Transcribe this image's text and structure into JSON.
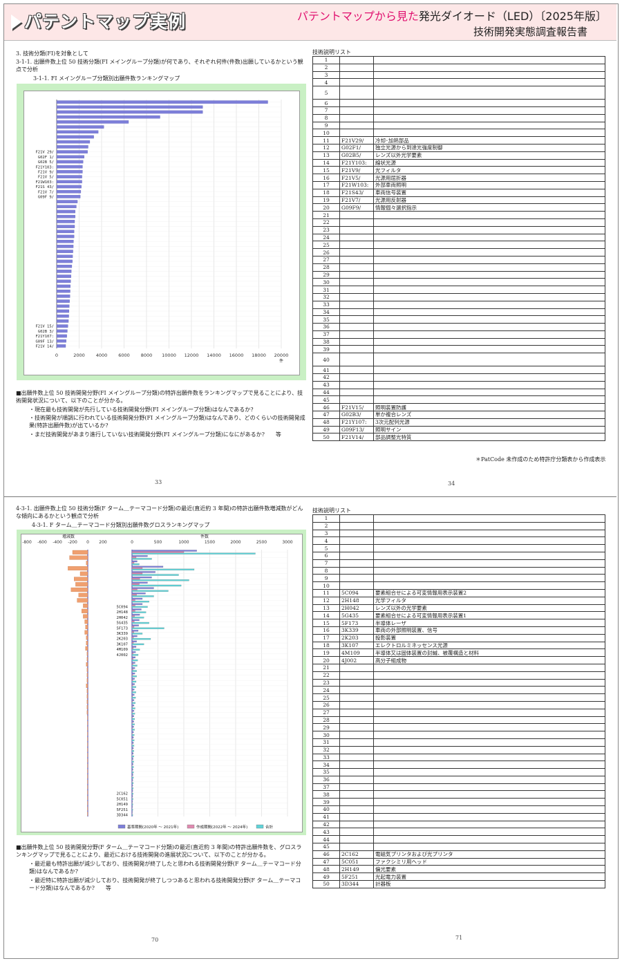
{
  "header": {
    "title": "パテントマップ実例",
    "subtitle_red": "パテントマップから見た",
    "subtitle_black": "発光ダイオード（LED）〔2025年版〕",
    "subtitle2": "技術開発実態調査報告書"
  },
  "section1": {
    "heading": "3. 技術分類(FI)を対象として",
    "sub": "3-1-1. 出願件数上位 50 技術分類(FI メイングループ分類)が何であり、それぞれ何件(件数)出願しているかという観点で分析",
    "chart_title": "3-1-1. FI メイングループ分類別出願件数ランキングマップ",
    "para_lead": "■出願件数上位 50 技術開発分野(FI メイングループ分類)の特許出願件数をランキングマップで見ることにより、技術開発状況について、以下のことが分かる。",
    "bullets": [
      "・現在最も技術開発が先行している技術開発分野(FI メイングループ分類)はなんであるか?",
      "・技術開発が順調に行われている技術開発分野(FI メイングループ分類)はなんであり、どのくらいの技術開発成果(特許出願件数)が出ているか?",
      "・まだ技術開発があまり進行していない技術開発分野(FI メイングループ分類)になにがあるか?　　等"
    ],
    "page_left": "33",
    "page_right": "34",
    "list_title": "技術説明リスト",
    "footnote": "＊PatCode 未作成のため特許庁分類表から作成表示",
    "list": [
      {
        "n": "1",
        "c": "",
        "d": ""
      },
      {
        "n": "2",
        "c": "",
        "d": ""
      },
      {
        "n": "3",
        "c": "",
        "d": ""
      },
      {
        "n": "4",
        "c": "",
        "d": ""
      },
      {
        "n": "5",
        "c": "",
        "d": ""
      },
      {
        "n": "6",
        "c": "",
        "d": ""
      },
      {
        "n": "7",
        "c": "",
        "d": ""
      },
      {
        "n": "8",
        "c": "",
        "d": ""
      },
      {
        "n": "9",
        "c": "",
        "d": ""
      },
      {
        "n": "10",
        "c": "",
        "d": ""
      },
      {
        "n": "11",
        "c": "F21V29/",
        "d": "冷却･加熱部品"
      },
      {
        "n": "12",
        "c": "G02F1/",
        "d": "独立光源から到達光強度制御"
      },
      {
        "n": "13",
        "c": "G02B5/",
        "d": "レンズ以外光学要素"
      },
      {
        "n": "14",
        "c": "F21Y103:",
        "d": "線状光源"
      },
      {
        "n": "15",
        "c": "F21V9/",
        "d": "光フィルタ"
      },
      {
        "n": "16",
        "c": "F21V5/",
        "d": "光源用屈折器"
      },
      {
        "n": "17",
        "c": "F21W103:",
        "d": "外部車両照明"
      },
      {
        "n": "18",
        "c": "F21S43/",
        "d": "車両信号装置"
      },
      {
        "n": "19",
        "c": "F21V7/",
        "d": "光源用反射器"
      },
      {
        "n": "20",
        "c": "G09F9/",
        "d": "情報個々選択指示"
      },
      {
        "n": "21",
        "c": "",
        "d": ""
      },
      {
        "n": "22",
        "c": "",
        "d": ""
      },
      {
        "n": "23",
        "c": "",
        "d": ""
      },
      {
        "n": "24",
        "c": "",
        "d": ""
      },
      {
        "n": "25",
        "c": "",
        "d": ""
      },
      {
        "n": "26",
        "c": "",
        "d": ""
      },
      {
        "n": "27",
        "c": "",
        "d": ""
      },
      {
        "n": "28",
        "c": "",
        "d": ""
      },
      {
        "n": "29",
        "c": "",
        "d": ""
      },
      {
        "n": "30",
        "c": "",
        "d": ""
      },
      {
        "n": "31",
        "c": "",
        "d": ""
      },
      {
        "n": "32",
        "c": "",
        "d": ""
      },
      {
        "n": "33",
        "c": "",
        "d": ""
      },
      {
        "n": "34",
        "c": "",
        "d": ""
      },
      {
        "n": "35",
        "c": "",
        "d": ""
      },
      {
        "n": "36",
        "c": "",
        "d": ""
      },
      {
        "n": "37",
        "c": "",
        "d": ""
      },
      {
        "n": "38",
        "c": "",
        "d": ""
      },
      {
        "n": "39",
        "c": "",
        "d": ""
      },
      {
        "n": "40",
        "c": "",
        "d": ""
      },
      {
        "n": "41",
        "c": "",
        "d": ""
      },
      {
        "n": "42",
        "c": "",
        "d": ""
      },
      {
        "n": "43",
        "c": "",
        "d": ""
      },
      {
        "n": "44",
        "c": "",
        "d": ""
      },
      {
        "n": "45",
        "c": "",
        "d": ""
      },
      {
        "n": "46",
        "c": "F21V15/",
        "d": "照明装置防護"
      },
      {
        "n": "47",
        "c": "G02B3/",
        "d": "単か複合レンズ"
      },
      {
        "n": "48",
        "c": "F21Y107:",
        "d": "3次元配列光源"
      },
      {
        "n": "49",
        "c": "G09F13/",
        "d": "照明サイン"
      },
      {
        "n": "50",
        "c": "F21V14/",
        "d": "部品調整光特質"
      }
    ]
  },
  "section2": {
    "sub": "4-3-1. 出願件数上位 50 技術分類(F ターム＿テーマコード分類)の最近(直近約 3 年間)の特許出願件数増減数がどんな傾向にあるかという観点で分析",
    "chart_title": "4-3-1. F ターム＿テーマコード分類別出願件数グロスランキングマップ",
    "para_lead": "■出願件数上位 50 技術開発分野(F ターム＿テーマコード分類)の最近(直近約 3 年間)の特許出願件数を、グロスランキングマップで見ることにより、最近における技術開発の進展状況について、以下のことが分かる。",
    "bullets": [
      "・最近最も特許出願が減少しており、技術開発が終了したと思われる技術開発分野(F ターム＿テーマコード分類)はなんであるか?",
      "・最近特に特許出願が減少しており、技術開発が終了しつつあると思われる技術開発分野(F ターム＿テーマコード分類)はなんであるか?　　等"
    ],
    "page_left": "70",
    "page_right": "71",
    "list_title": "技術説明リスト",
    "list": [
      {
        "n": "1",
        "c": "",
        "d": ""
      },
      {
        "n": "2",
        "c": "",
        "d": ""
      },
      {
        "n": "3",
        "c": "",
        "d": ""
      },
      {
        "n": "4",
        "c": "",
        "d": ""
      },
      {
        "n": "5",
        "c": "",
        "d": ""
      },
      {
        "n": "6",
        "c": "",
        "d": ""
      },
      {
        "n": "7",
        "c": "",
        "d": ""
      },
      {
        "n": "8",
        "c": "",
        "d": ""
      },
      {
        "n": "9",
        "c": "",
        "d": ""
      },
      {
        "n": "10",
        "c": "",
        "d": ""
      },
      {
        "n": "11",
        "c": "5C094",
        "d": "要素組合せによる可変情報用表示装置2"
      },
      {
        "n": "12",
        "c": "2H148",
        "d": "光学フィルタ"
      },
      {
        "n": "13",
        "c": "2H042",
        "d": "レンズ以外の光学要素"
      },
      {
        "n": "14",
        "c": "5G435",
        "d": "要素組合せによる可変情報用表示装置1"
      },
      {
        "n": "15",
        "c": "5F173",
        "d": "半導体レーザ"
      },
      {
        "n": "16",
        "c": "3K339",
        "d": "車両の外部照明装置、信号"
      },
      {
        "n": "17",
        "c": "2K203",
        "d": "投影装置"
      },
      {
        "n": "18",
        "c": "3K107",
        "d": "エレクトロルミネッセンス光源"
      },
      {
        "n": "19",
        "c": "4M109",
        "d": "半導体又は固体装置の封緘、被覆構造と材料"
      },
      {
        "n": "20",
        "c": "4J002",
        "d": "高分子組成物"
      },
      {
        "n": "21",
        "c": "",
        "d": ""
      },
      {
        "n": "22",
        "c": "",
        "d": ""
      },
      {
        "n": "23",
        "c": "",
        "d": ""
      },
      {
        "n": "24",
        "c": "",
        "d": ""
      },
      {
        "n": "25",
        "c": "",
        "d": ""
      },
      {
        "n": "26",
        "c": "",
        "d": ""
      },
      {
        "n": "27",
        "c": "",
        "d": ""
      },
      {
        "n": "28",
        "c": "",
        "d": ""
      },
      {
        "n": "29",
        "c": "",
        "d": ""
      },
      {
        "n": "30",
        "c": "",
        "d": ""
      },
      {
        "n": "31",
        "c": "",
        "d": ""
      },
      {
        "n": "32",
        "c": "",
        "d": ""
      },
      {
        "n": "33",
        "c": "",
        "d": ""
      },
      {
        "n": "34",
        "c": "",
        "d": ""
      },
      {
        "n": "35",
        "c": "",
        "d": ""
      },
      {
        "n": "36",
        "c": "",
        "d": ""
      },
      {
        "n": "37",
        "c": "",
        "d": ""
      },
      {
        "n": "38",
        "c": "",
        "d": ""
      },
      {
        "n": "39",
        "c": "",
        "d": ""
      },
      {
        "n": "40",
        "c": "",
        "d": ""
      },
      {
        "n": "41",
        "c": "",
        "d": ""
      },
      {
        "n": "42",
        "c": "",
        "d": ""
      },
      {
        "n": "43",
        "c": "",
        "d": ""
      },
      {
        "n": "44",
        "c": "",
        "d": ""
      },
      {
        "n": "45",
        "c": "",
        "d": ""
      },
      {
        "n": "46",
        "c": "2C162",
        "d": "電磁気プリンタおよび光プリンタ"
      },
      {
        "n": "47",
        "c": "5C051",
        "d": "ファクシミリ用ヘッド"
      },
      {
        "n": "48",
        "c": "2H149",
        "d": "偏光要素"
      },
      {
        "n": "49",
        "c": "5F251",
        "d": "光起電力装置"
      },
      {
        "n": "50",
        "c": "3D344",
        "d": "計器板"
      }
    ]
  },
  "chart_data": [
    {
      "type": "bar",
      "title": "3-1-1. FI メイングループ分類別出願件数ランキングマップ",
      "orientation": "horizontal",
      "xlabel": "件",
      "xlim": [
        0,
        20000
      ],
      "xticks": [
        "0",
        "2000",
        "4000",
        "6000",
        "8000",
        "10000",
        "12000",
        "14000",
        "16000",
        "18000",
        "20000"
      ],
      "categories": [
        "",
        "",
        "",
        "",
        "",
        "",
        "",
        "",
        "",
        "",
        "F21V 29/",
        "G02F 1/",
        "G02B 5/",
        "F21Y103:",
        "F21V 9/",
        "F21V 5/",
        "F21W103:",
        "F21S 43/",
        "F21V 7/",
        "G09F 9/",
        "",
        "",
        "",
        "",
        "",
        "",
        "",
        "",
        "",
        "",
        "",
        "",
        "",
        "",
        "",
        "",
        "",
        "",
        "",
        "",
        "",
        "",
        "",
        "",
        "",
        "F21V 15/",
        "G02B 3/",
        "F21Y107:",
        "G09F 13/",
        "F21V 14/"
      ],
      "values": [
        18800,
        13000,
        13000,
        9200,
        6400,
        4200,
        3700,
        3300,
        2950,
        2800,
        2750,
        2450,
        2350,
        2300,
        2300,
        2250,
        2250,
        2200,
        2150,
        2100,
        1850,
        1750,
        1650,
        1650,
        1600,
        1600,
        1550,
        1550,
        1500,
        1480,
        1450,
        1420,
        1400,
        1350,
        1300,
        1280,
        1250,
        1220,
        1200,
        1180,
        1150,
        1120,
        1100,
        1080,
        1050,
        1000,
        950,
        900,
        850,
        800
      ],
      "color": "#7d7fd9"
    },
    {
      "type": "bar",
      "title": "4-3-1. F ターム＿テーマコード分類別出願件数グロスランキングマップ",
      "orientation": "horizontal",
      "left_panel": {
        "xlabel": "増減数",
        "xlim": [
          -800,
          200
        ],
        "xticks": [
          "-800",
          "-600",
          "-400",
          "-200",
          "0",
          "200"
        ]
      },
      "right_panel": {
        "xlabel": "件数",
        "xlim": [
          0,
          3000
        ],
        "xticks": [
          "0",
          "500",
          "1000",
          "1500",
          "2000",
          "2500",
          "3000"
        ]
      },
      "categories": [
        "",
        "",
        "",
        "",
        "",
        "",
        "",
        "",
        "",
        "",
        "5C094",
        "2H148",
        "2H042",
        "5G435",
        "5F173",
        "3K339",
        "2K203",
        "3K107",
        "4M109",
        "4J002",
        "",
        "",
        "",
        "",
        "",
        "",
        "",
        "",
        "",
        "",
        "",
        "",
        "",
        "",
        "",
        "",
        "",
        "",
        "",
        "",
        "",
        "",
        "",
        "",
        "",
        "2C162",
        "5C051",
        "2H149",
        "5F251",
        "3D344"
      ],
      "series": [
        {
          "name": "基準期間(2020年 ～ 2021年)",
          "color": "#7d7fd9",
          "values": [
            1250,
            300,
            100,
            600,
            450,
            380,
            300,
            420,
            260,
            200,
            200,
            180,
            150,
            140,
            130,
            120,
            100,
            90,
            80,
            70,
            65,
            60,
            55,
            55,
            50,
            50,
            45,
            45,
            40,
            40,
            40,
            38,
            36,
            34,
            32,
            30,
            30,
            28,
            26,
            24,
            22,
            20,
            20,
            18,
            16,
            15,
            14,
            12,
            10,
            8
          ]
        },
        {
          "name": "作成期間(2022年 ～ 2024年)",
          "color": "#e08ab0",
          "values": [
            1000,
            80,
            40,
            200,
            200,
            150,
            140,
            100,
            90,
            60,
            60,
            60,
            50,
            45,
            40,
            35,
            30,
            28,
            26,
            24,
            22,
            20,
            20,
            18,
            16,
            15,
            14,
            12,
            12,
            10,
            10,
            9,
            8,
            8,
            7,
            7,
            6,
            6,
            5,
            5,
            5,
            4,
            4,
            4,
            3,
            3,
            3,
            2,
            2,
            2
          ]
        },
        {
          "name": "合計",
          "color": "#5fd3d8",
          "values": [
            2380,
            380,
            140,
            1200,
            900,
            1100,
            950,
            700,
            420,
            330,
            300,
            270,
            230,
            330,
            620,
            200,
            360,
            230,
            150,
            120,
            110,
            100,
            90,
            90,
            80,
            78,
            75,
            70,
            65,
            60,
            55,
            52,
            50,
            48,
            45,
            42,
            40,
            38,
            36,
            34,
            32,
            30,
            28,
            26,
            24,
            22,
            20,
            18,
            16,
            14
          ]
        }
      ],
      "change_values": [
        -200,
        -240,
        -20,
        -260,
        -100,
        -180,
        -160,
        -220,
        -120,
        -140,
        -60,
        -80,
        -60,
        -40,
        -30,
        -40,
        -20,
        -20,
        -30,
        -10,
        -10,
        -20,
        -10,
        -10,
        -10,
        -20,
        -10,
        -10,
        -10,
        -10,
        -10,
        -5,
        -5,
        -5,
        -5,
        -5,
        -5,
        -5,
        -5,
        -5,
        -5,
        -5,
        -5,
        -5,
        -5,
        -5,
        -5,
        -5,
        -5,
        -5
      ],
      "change_color": "#f0a070"
    }
  ]
}
